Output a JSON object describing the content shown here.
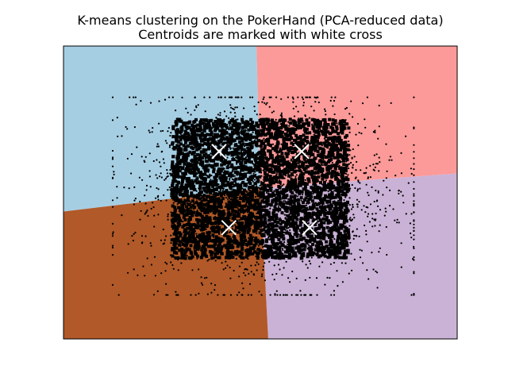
{
  "chart_data": {
    "type": "scatter",
    "title": "K-means clustering on the PokerHand (PCA-reduced data)",
    "subtitle": "Centroids are marked with white cross",
    "xlabel": "",
    "ylabel": "",
    "xlim": [
      -1.0,
      1.0
    ],
    "ylim": [
      -1.0,
      1.0
    ],
    "ticks_visible": false,
    "grid": false,
    "legend": "none",
    "colors": {
      "region_top_left": "#a6cee3",
      "region_top_right": "#fb9a99",
      "region_bottom_right": "#cab2d6",
      "region_bottom_left": "#b15928",
      "points": "#000000",
      "centroid": "#ffffff"
    },
    "regions": [
      {
        "name": "top-left",
        "color": "#a6cee3",
        "polygon": [
          [
            -1.0,
            1.0
          ],
          [
            -0.02,
            1.0
          ],
          [
            0.0,
            0.03
          ],
          [
            -1.0,
            -0.13
          ]
        ]
      },
      {
        "name": "top-right",
        "color": "#fb9a99",
        "polygon": [
          [
            -0.02,
            1.0
          ],
          [
            1.0,
            1.0
          ],
          [
            1.0,
            0.13
          ],
          [
            0.0,
            0.03
          ]
        ]
      },
      {
        "name": "bottom-right",
        "color": "#cab2d6",
        "polygon": [
          [
            0.0,
            0.03
          ],
          [
            1.0,
            0.13
          ],
          [
            1.0,
            -1.0
          ],
          [
            0.04,
            -1.0
          ]
        ]
      },
      {
        "name": "bottom-left",
        "color": "#b15928",
        "polygon": [
          [
            -1.0,
            -0.13
          ],
          [
            0.0,
            0.03
          ],
          [
            0.04,
            -1.0
          ],
          [
            -1.0,
            -1.0
          ]
        ]
      }
    ],
    "centroids": [
      {
        "x": -0.21,
        "y": 0.28
      },
      {
        "x": 0.21,
        "y": 0.28
      },
      {
        "x": -0.16,
        "y": -0.24
      },
      {
        "x": 0.25,
        "y": -0.24
      }
    ],
    "points_summary": {
      "x_range": [
        -0.75,
        0.78
      ],
      "y_range": [
        -0.7,
        0.65
      ],
      "dense_core": {
        "x": [
          -0.45,
          0.45
        ],
        "y": [
          -0.45,
          0.5
        ]
      }
    }
  }
}
